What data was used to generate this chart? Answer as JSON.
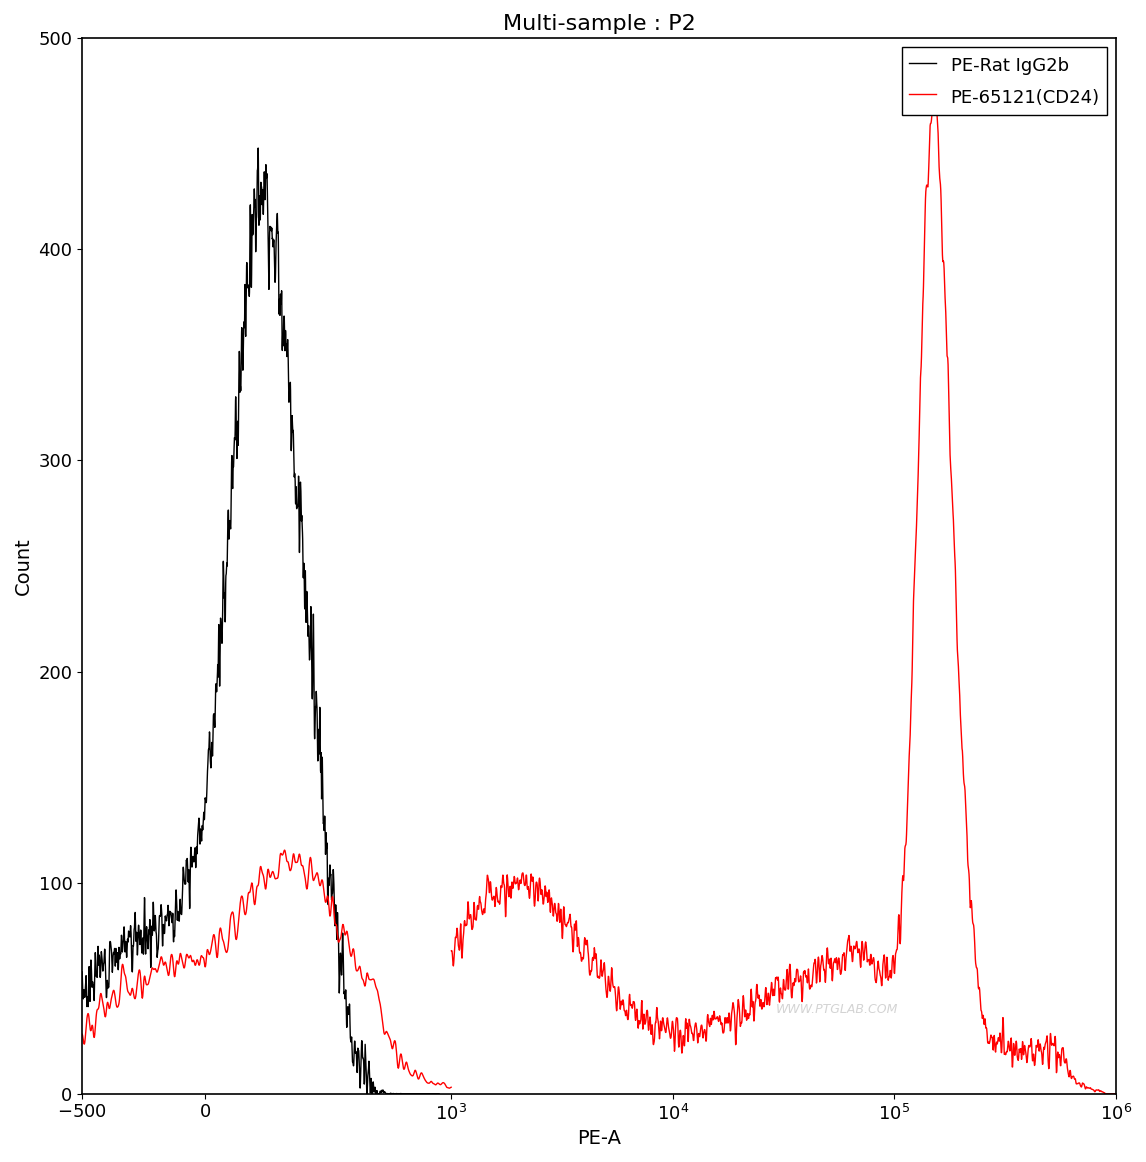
{
  "title": "Multi-sample : P2",
  "xlabel": "PE-A",
  "ylabel": "Count",
  "ylim": [
    0,
    500
  ],
  "yticks": [
    0,
    100,
    200,
    300,
    400,
    500
  ],
  "background_color": "#ffffff",
  "watermark": "WWW.PTGLAB.COM",
  "legend_labels": [
    "PE-Rat IgG2b",
    "PE-65121(CD24)"
  ],
  "legend_colors": [
    "#000000",
    "#ff0000"
  ],
  "black_color": "#000000",
  "red_color": "#ff0000",
  "title_fontsize": 16,
  "axis_fontsize": 14,
  "tick_fontsize": 13,
  "linthresh": 1000,
  "linscale": 1.0
}
